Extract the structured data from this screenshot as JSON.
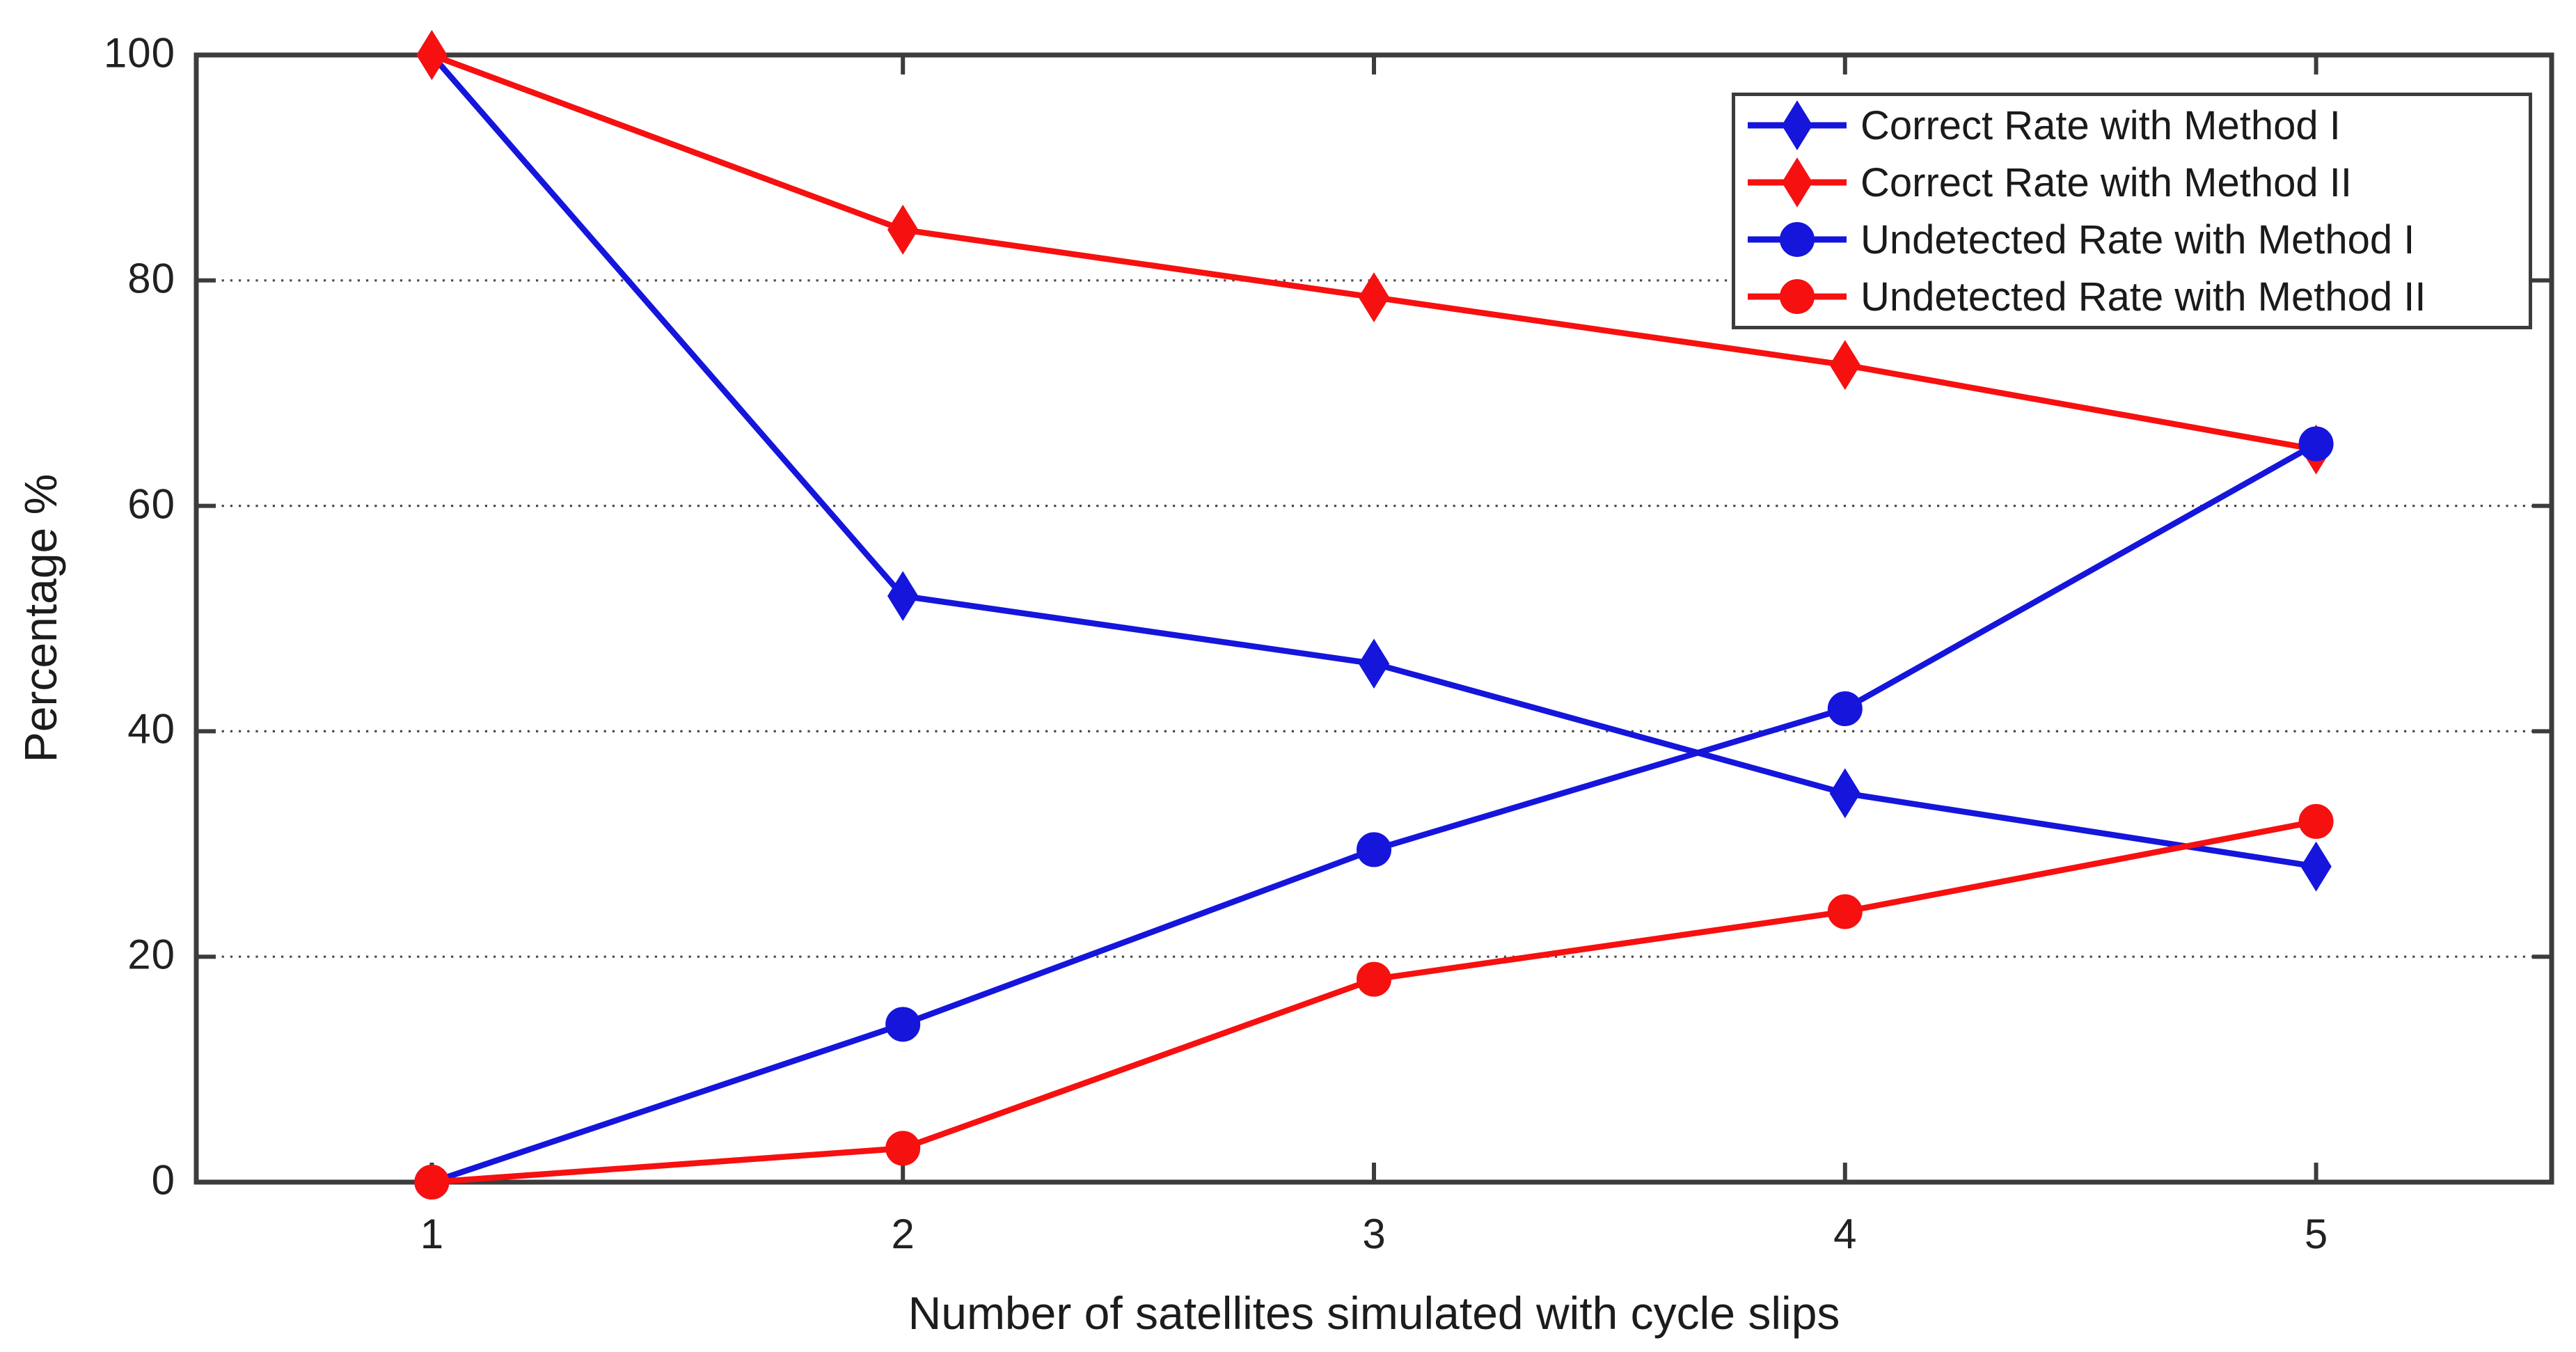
{
  "chart_data": {
    "type": "line",
    "x": [
      1,
      2,
      3,
      4,
      5
    ],
    "series": [
      {
        "name": "Correct Rate with Method I",
        "color": "#1515DC",
        "marker": "diamond",
        "values": [
          100,
          52,
          46,
          34.5,
          28
        ]
      },
      {
        "name": "Correct Rate with Method II",
        "color": "#F61010",
        "marker": "diamond",
        "values": [
          100,
          84.5,
          78.5,
          72.5,
          65
        ]
      },
      {
        "name": "Undetected Rate with Method I",
        "color": "#1515DC",
        "marker": "circle",
        "values": [
          0,
          14,
          29.5,
          42,
          65.5
        ]
      },
      {
        "name": "Undetected Rate with Method II",
        "color": "#F61010",
        "marker": "circle",
        "values": [
          0,
          3,
          18,
          24,
          32
        ]
      }
    ],
    "xlabel": "Number of satellites simulated with cycle slips",
    "ylabel": "Percentage %",
    "x_ticks": [
      1,
      2,
      3,
      4,
      5
    ],
    "y_ticks": [
      0,
      20,
      40,
      60,
      80,
      100
    ],
    "xlim": [
      0.5,
      5.5
    ],
    "ylim": [
      0,
      100
    ],
    "grid": "horizontal-dotted",
    "legend_position": "top-right",
    "colors": {
      "axis": "#3C3C3C",
      "gridline": "#4A4A4A",
      "tick_text": "#212121",
      "background": "#FFFFFF"
    }
  }
}
